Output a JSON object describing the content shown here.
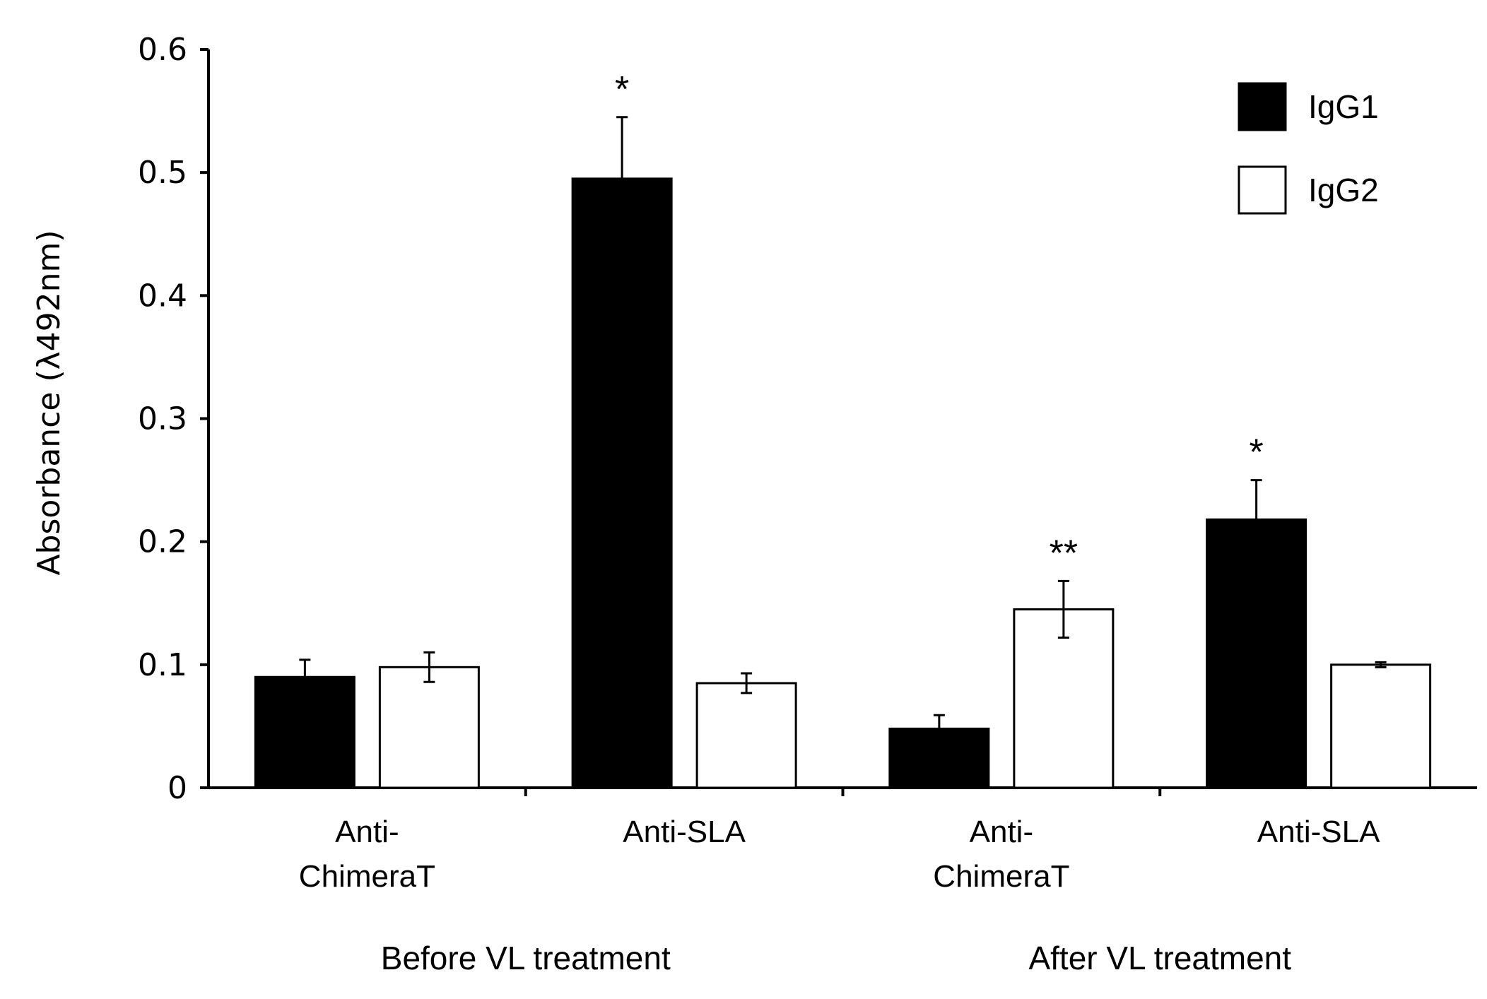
{
  "chart_data": {
    "type": "bar",
    "title": "",
    "xlabel": "",
    "ylabel": "Absorbance (λ492nm)",
    "ylim": [
      0,
      0.6
    ],
    "yticks": [
      "0",
      "0.1",
      "0.2",
      "0.3",
      "0.4",
      "0.5",
      "0.6"
    ],
    "grid": false,
    "legend_position": "top-right",
    "colors": {
      "IgG1": "#000000",
      "IgG2": "#ffffff",
      "stroke": "#000000"
    },
    "groups": [
      {
        "label": "Before VL treatment",
        "categories": [
          "Anti-ChimeraT",
          "Anti-SLA"
        ]
      },
      {
        "label": "After VL treatment",
        "categories": [
          "Anti-ChimeraT",
          "Anti-SLA"
        ]
      }
    ],
    "category_labels": [
      [
        "Anti-",
        "ChimeraT"
      ],
      [
        "Anti-SLA"
      ],
      [
        "Anti-",
        "ChimeraT"
      ],
      [
        "Anti-SLA"
      ]
    ],
    "series": [
      {
        "name": "IgG1",
        "values": [
          0.09,
          0.495,
          0.048,
          0.218
        ],
        "errors": [
          0.014,
          0.05,
          0.011,
          0.032
        ],
        "significance": [
          "",
          "*",
          "",
          "*"
        ]
      },
      {
        "name": "IgG2",
        "values": [
          0.098,
          0.085,
          0.145,
          0.1
        ],
        "errors": [
          0.012,
          0.008,
          0.023,
          0.002
        ],
        "significance": [
          "",
          "",
          "**",
          ""
        ]
      }
    ]
  }
}
